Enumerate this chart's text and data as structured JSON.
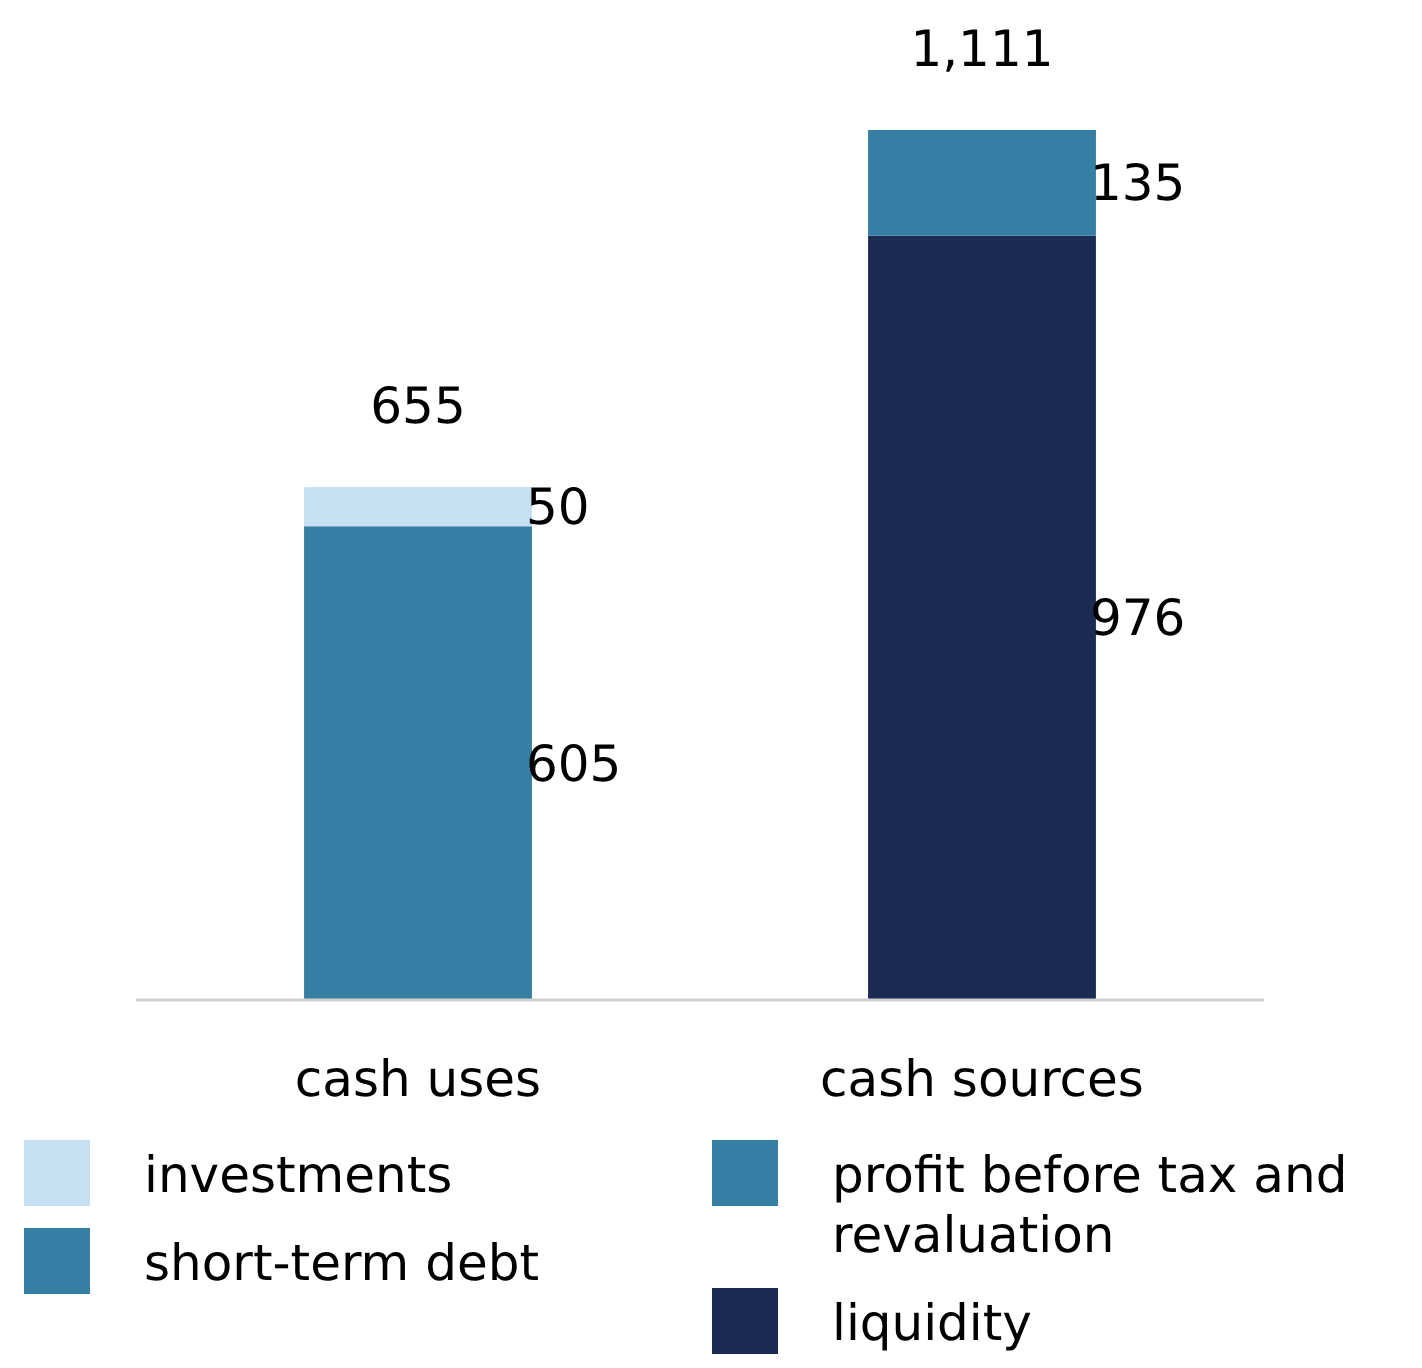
{
  "chart_data": {
    "type": "bar",
    "stacked": true,
    "categories": [
      "cash uses",
      "cash sources"
    ],
    "series": [
      {
        "name": "liquidity",
        "color": "#1b2b54",
        "values": [
          null,
          976
        ]
      },
      {
        "name": "short-term debt",
        "color": "#357fa5",
        "values": [
          605,
          null
        ]
      },
      {
        "name": "profit before tax and revaluation",
        "color": "#357fa5",
        "values": [
          null,
          135
        ]
      },
      {
        "name": "investments",
        "color": "#c5e0f2",
        "values": [
          50,
          null
        ]
      }
    ],
    "data_labels": true,
    "totals": [
      "655",
      "1,111"
    ],
    "legend": "bottom"
  }
}
